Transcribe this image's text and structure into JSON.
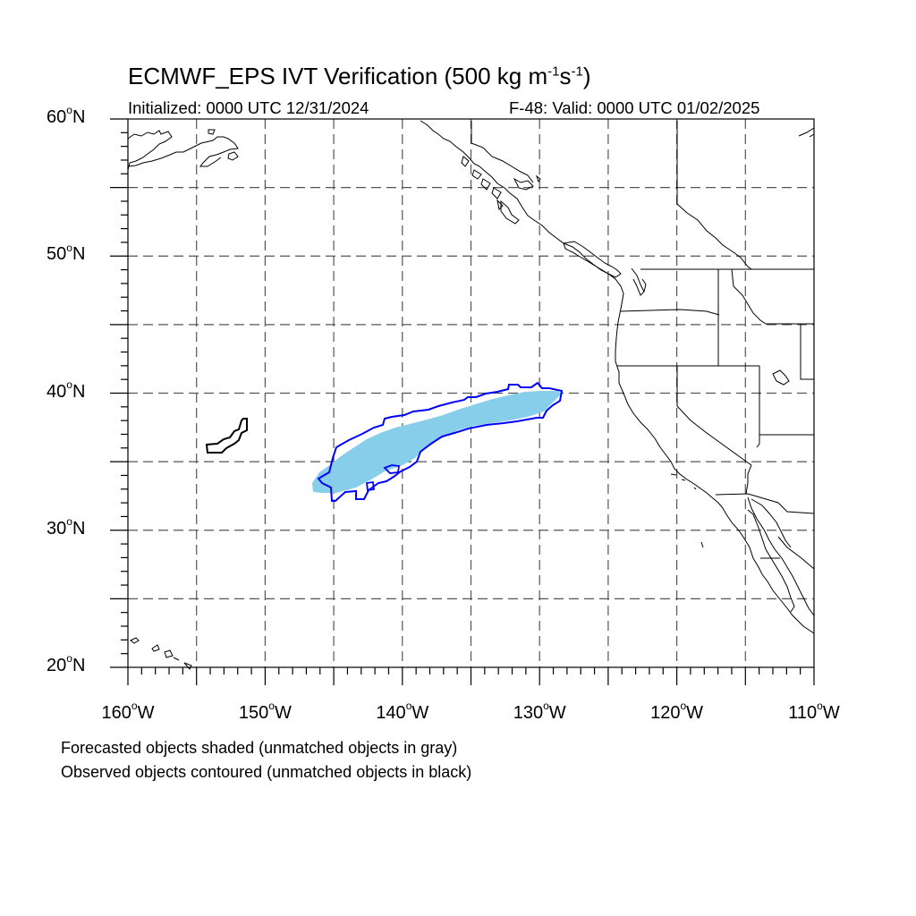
{
  "header": {
    "title_main": "ECMWF_EPS IVT Verification (500 kg m",
    "title_exp1": "-1",
    "title_mid": "s",
    "title_exp2": "-1",
    "title_end": ")",
    "initialized": "Initialized: 0000 UTC 12/31/2024",
    "valid": "F-48: Valid: 0000 UTC 01/02/2025"
  },
  "axes": {
    "lat_labels": [
      "60",
      "50",
      "40",
      "30",
      "20"
    ],
    "lat_suffix": "N",
    "lon_labels": [
      "160",
      "150",
      "140",
      "130",
      "120",
      "110"
    ],
    "lon_suffix": "W",
    "degree_mark": "o",
    "lon_range": [
      -160,
      -110
    ],
    "lat_range": [
      20,
      60
    ],
    "grid": "dashed every 5 degrees"
  },
  "legend": {
    "line1": "Forecasted objects shaded (unmatched objects in gray)",
    "line2": "Observed objects contoured (unmatched objects in black)"
  },
  "colors": {
    "forecast_fill": "#87ceeb",
    "observed_matched": "#0000ff",
    "observed_unmatched": "#000000",
    "grid": "#555555",
    "coast": "#000000"
  }
}
